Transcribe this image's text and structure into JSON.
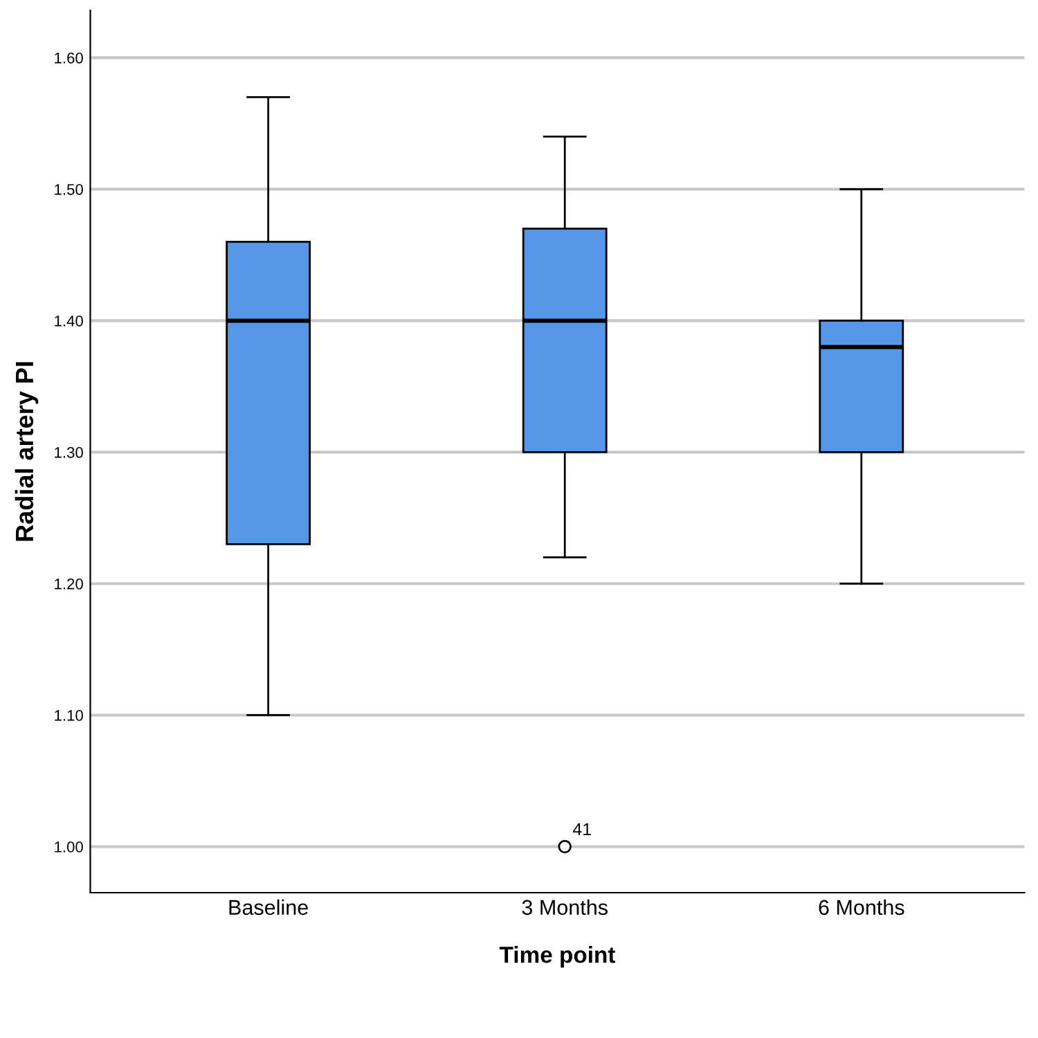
{
  "chart_data": {
    "type": "box",
    "xlabel": "Time point",
    "ylabel": "Radial artery PI",
    "categories": [
      "Baseline",
      "3 Months",
      "6 Months"
    ],
    "color": "#5596e6",
    "boxes": [
      {
        "low": 1.1,
        "q1": 1.23,
        "median": 1.4,
        "q3": 1.46,
        "high": 1.57
      },
      {
        "low": 1.22,
        "q1": 1.3,
        "median": 1.4,
        "q3": 1.47,
        "high": 1.54,
        "outliers": [
          1.0
        ]
      },
      {
        "low": 1.2,
        "q1": 1.3,
        "median": 1.38,
        "q3": 1.4,
        "high": 1.5
      }
    ],
    "ylim": [
      0.965,
      1.636
    ],
    "yticks": [
      {
        "value": 1.0,
        "label": "1.00"
      },
      {
        "value": 1.1,
        "label": "1.10"
      },
      {
        "value": 1.2,
        "label": "1.20"
      },
      {
        "value": 1.3,
        "label": "1.30"
      },
      {
        "value": 1.4,
        "label": "1.40"
      },
      {
        "value": 1.5,
        "label": "1.50"
      },
      {
        "value": 1.6,
        "label": "1.60"
      }
    ],
    "grid": "y",
    "annotations": [
      "41"
    ]
  }
}
